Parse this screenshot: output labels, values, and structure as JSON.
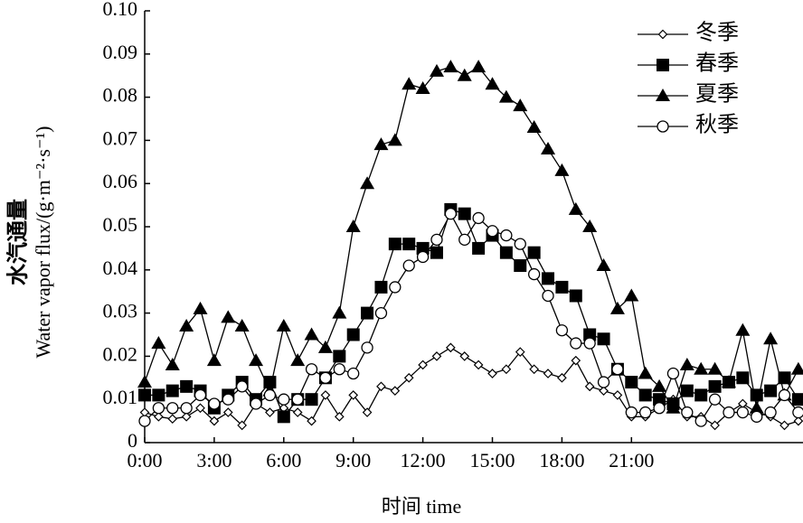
{
  "chart_data": {
    "type": "line",
    "ylabel": [
      "水汽通量",
      "Water vapor flux/(g·m⁻²·s⁻¹)"
    ],
    "xlabel": "时间 time",
    "x": [
      0,
      0.6,
      1.2,
      1.8,
      2.4,
      3,
      3.6,
      4.2,
      4.8,
      5.4,
      6,
      6.6,
      7.2,
      7.8,
      8.4,
      9,
      9.6,
      10.2,
      10.8,
      11.4,
      12,
      12.6,
      13.2,
      13.8,
      14.4,
      15,
      15.6,
      16.2,
      16.8,
      17.4,
      18,
      18.6,
      19.2,
      19.8,
      20.4,
      21,
      21.6,
      22.2,
      22.8,
      23.4,
      24,
      24.6,
      25.2,
      25.8,
      26.4,
      27,
      27.6,
      28.2
    ],
    "xlim": [
      0,
      28.4
    ],
    "xticks": [
      {
        "value": 0,
        "label": "0:00"
      },
      {
        "value": 3,
        "label": "3:00"
      },
      {
        "value": 6,
        "label": "6:00"
      },
      {
        "value": 9,
        "label": "9:00"
      },
      {
        "value": 12,
        "label": "12:00"
      },
      {
        "value": 15,
        "label": "15:00"
      },
      {
        "value": 18,
        "label": "18:00"
      },
      {
        "value": 21,
        "label": "21:00"
      }
    ],
    "ylim": [
      0,
      0.1
    ],
    "yticks": [
      0,
      0.01,
      0.02,
      0.03,
      0.04,
      0.05,
      0.06,
      0.07,
      0.08,
      0.09,
      {
        "value": 0.1,
        "label": "0.10"
      }
    ],
    "legend": "top-right",
    "series": [
      {
        "name": "冬季",
        "color": "#000000",
        "marker": "diamond-open",
        "values": [
          0.007,
          0.006,
          0.0055,
          0.006,
          0.008,
          0.005,
          0.007,
          0.004,
          0.009,
          0.007,
          0.008,
          0.007,
          0.005,
          0.011,
          0.006,
          0.011,
          0.007,
          0.013,
          0.012,
          0.015,
          0.018,
          0.02,
          0.022,
          0.02,
          0.018,
          0.016,
          0.017,
          0.021,
          0.017,
          0.016,
          0.015,
          0.019,
          0.013,
          0.012,
          0.011,
          0.006,
          0.006,
          0.008,
          0.01,
          0.006,
          0.006,
          0.004,
          0.007,
          0.009,
          0.007,
          0.006,
          0.004,
          0.005
        ]
      },
      {
        "name": "春季",
        "color": "#000000",
        "marker": "square",
        "values": [
          0.011,
          0.011,
          0.012,
          0.013,
          0.012,
          0.008,
          0.011,
          0.014,
          0.01,
          0.014,
          0.006,
          0.01,
          0.01,
          0.015,
          0.02,
          0.025,
          0.03,
          0.036,
          0.046,
          0.046,
          0.045,
          0.044,
          0.054,
          0.053,
          0.045,
          0.048,
          0.044,
          0.041,
          0.044,
          0.038,
          0.036,
          0.034,
          0.025,
          0.024,
          0.017,
          0.014,
          0.011,
          0.01,
          0.009,
          0.012,
          0.011,
          0.013,
          0.014,
          0.015,
          0.011,
          0.012,
          0.015,
          0.01
        ]
      },
      {
        "name": "夏季",
        "color": "#000000",
        "marker": "triangle",
        "values": [
          0.014,
          0.023,
          0.018,
          0.027,
          0.031,
          0.019,
          0.029,
          0.027,
          0.019,
          0.012,
          0.027,
          0.019,
          0.025,
          0.022,
          0.03,
          0.05,
          0.06,
          0.069,
          0.07,
          0.083,
          0.082,
          0.086,
          0.087,
          0.085,
          0.087,
          0.083,
          0.08,
          0.078,
          0.073,
          0.068,
          0.063,
          0.054,
          0.05,
          0.041,
          0.031,
          0.034,
          0.016,
          0.013,
          0.008,
          0.018,
          0.017,
          0.017,
          0.014,
          0.026,
          0.008,
          0.024,
          0.011,
          0.017
        ]
      },
      {
        "name": "秋季",
        "color": "#000000",
        "marker": "circle-open",
        "values": [
          0.005,
          0.008,
          0.008,
          0.008,
          0.011,
          0.009,
          0.01,
          0.013,
          0.009,
          0.011,
          0.01,
          0.01,
          0.017,
          0.015,
          0.017,
          0.016,
          0.022,
          0.03,
          0.036,
          0.041,
          0.043,
          0.047,
          0.053,
          0.047,
          0.052,
          0.049,
          0.048,
          0.046,
          0.039,
          0.034,
          0.026,
          0.023,
          0.023,
          0.014,
          0.017,
          0.007,
          0.007,
          0.008,
          0.016,
          0.007,
          0.005,
          0.01,
          0.007,
          0.007,
          0.006,
          0.007,
          0.011,
          0.007
        ]
      }
    ]
  }
}
